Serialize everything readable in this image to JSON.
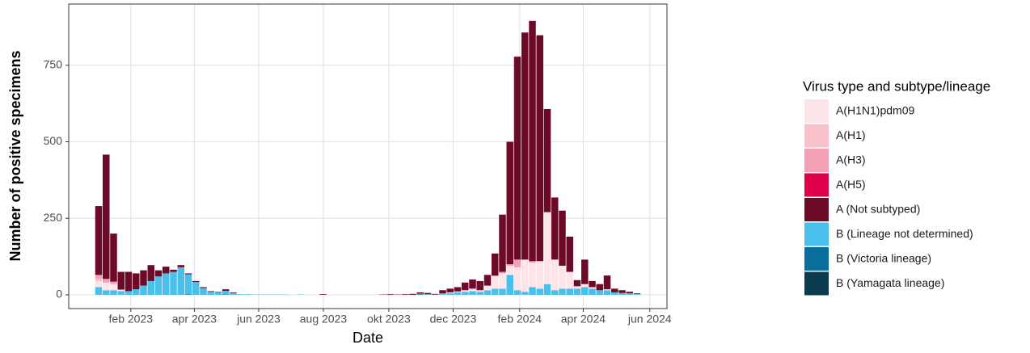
{
  "chart_data": {
    "type": "stacked_bar",
    "x_label": "Date",
    "y_label": "Number of positive specimens",
    "legend_title": "Virus type and subtype/lineage",
    "categories": [
      null,
      null,
      null,
      null,
      null,
      null,
      null,
      null,
      null,
      null,
      null,
      null,
      null,
      null,
      null,
      null,
      null,
      null,
      null,
      null,
      null,
      null,
      null,
      null,
      null,
      null,
      null,
      null,
      null,
      null,
      null,
      null,
      null,
      null,
      null,
      null,
      null,
      null,
      null,
      null,
      null,
      null,
      null,
      null,
      null,
      null,
      null,
      null,
      null,
      null,
      null,
      null,
      null,
      null,
      null,
      null,
      null,
      null,
      null,
      null,
      null,
      null,
      null,
      null,
      null,
      null,
      null,
      null,
      null,
      null,
      null,
      null,
      null
    ],
    "xlim": [
      -4,
      76
    ],
    "xticks": [
      {
        "value": 4.3,
        "label": "feb 2023"
      },
      {
        "value": 12.8,
        "label": "apr 2023"
      },
      {
        "value": 21.4,
        "label": "jun 2023"
      },
      {
        "value": 30.05,
        "label": "aug 2023"
      },
      {
        "value": 38.8,
        "label": "okt 2023"
      },
      {
        "value": 47.4,
        "label": "dec 2023"
      },
      {
        "value": 56.3,
        "label": "feb 2024"
      },
      {
        "value": 64.8,
        "label": "apr 2024"
      },
      {
        "value": 73.7,
        "label": "jun 2024"
      }
    ],
    "ylim": [
      -45,
      950
    ],
    "yticks": [
      0,
      250,
      500,
      750
    ],
    "grid": true,
    "series": [
      {
        "name": "A(H1N1)pdm09",
        "color": "#fce4e8",
        "values": [
          20,
          25,
          20,
          5,
          0,
          0,
          0,
          0,
          0,
          0,
          0,
          0,
          0,
          0,
          0,
          0,
          0,
          0,
          0,
          0,
          0,
          0,
          0,
          0,
          0,
          0,
          0,
          0,
          0,
          0,
          0,
          0,
          0,
          0,
          0,
          0,
          0,
          0,
          0,
          0,
          0,
          0,
          0,
          0,
          0,
          0,
          0,
          3,
          3,
          5,
          8,
          5,
          15,
          40,
          50,
          30,
          75,
          105,
          80,
          90,
          235,
          100,
          75,
          55,
          8,
          10,
          5,
          0,
          3,
          0,
          0,
          0,
          0
        ]
      },
      {
        "name": "A(H1)",
        "color": "#f8c0c8",
        "values": [
          8,
          0,
          0,
          0,
          0,
          0,
          0,
          0,
          0,
          0,
          0,
          0,
          0,
          0,
          0,
          0,
          0,
          0,
          0,
          0,
          0,
          0,
          0,
          0,
          0,
          0,
          0,
          0,
          0,
          0,
          0,
          0,
          0,
          0,
          0,
          0,
          0,
          0,
          0,
          0,
          0,
          0,
          0,
          0,
          0,
          0,
          0,
          0,
          0,
          0,
          0,
          0,
          0,
          0,
          0,
          0,
          0,
          0,
          0,
          0,
          0,
          0,
          0,
          0,
          0,
          0,
          0,
          0,
          0,
          0,
          0,
          0,
          0
        ]
      },
      {
        "name": "A(H3)",
        "color": "#f4a0b4",
        "values": [
          12,
          12,
          8,
          0,
          0,
          0,
          0,
          0,
          0,
          0,
          0,
          0,
          0,
          0,
          0,
          0,
          0,
          0,
          0,
          0,
          0,
          0,
          0,
          0,
          0,
          0,
          0,
          0,
          0,
          0,
          0,
          0,
          0,
          0,
          0,
          0,
          0,
          0,
          0,
          0,
          0,
          0,
          0,
          0,
          0,
          0,
          0,
          0,
          0,
          0,
          0,
          0,
          0,
          3,
          5,
          5,
          25,
          0,
          5,
          0,
          0,
          0,
          0,
          0,
          0,
          0,
          0,
          0,
          0,
          0,
          0,
          0,
          0
        ]
      },
      {
        "name": "A(H5)",
        "color": "#e0004a",
        "values": [
          0,
          0,
          0,
          0,
          0,
          0,
          0,
          0,
          0,
          0,
          0,
          0,
          0,
          0,
          0,
          0,
          0,
          0,
          0,
          0,
          0,
          0,
          0,
          0,
          0,
          0,
          0,
          0,
          0,
          0,
          0,
          0,
          0,
          0,
          0,
          0,
          0,
          0,
          0,
          0,
          0,
          0,
          0,
          0,
          0,
          0,
          0,
          0,
          0,
          0,
          0,
          0,
          0,
          0,
          0,
          0,
          0,
          0,
          0,
          0,
          0,
          0,
          0,
          0,
          0,
          0,
          0,
          0,
          0,
          0,
          0,
          0,
          0
        ]
      },
      {
        "name": "A (Not subtyped)",
        "color": "#6d0a28",
        "values": [
          225,
          406,
          157,
          58,
          63,
          52,
          50,
          52,
          20,
          22,
          7,
          7,
          3,
          3,
          3,
          2,
          1,
          5,
          2,
          0,
          0,
          0,
          0,
          0,
          0,
          0,
          0,
          0,
          0,
          0,
          2,
          0,
          0,
          0,
          0,
          0,
          0,
          0,
          1,
          2,
          1,
          2,
          3,
          4,
          4,
          2,
          10,
          12,
          14,
          25,
          30,
          30,
          35,
          72,
          187,
          400,
          663,
          742,
          785,
          738,
          337,
          203,
          180,
          115,
          20,
          80,
          20,
          20,
          45,
          12,
          9,
          5,
          2
        ]
      },
      {
        "name": "B (Lineage not determined)",
        "color": "#49bfeb",
        "values": [
          25,
          15,
          15,
          12,
          12,
          18,
          30,
          45,
          60,
          70,
          75,
          90,
          65,
          42,
          22,
          10,
          9,
          12,
          6,
          2,
          2,
          1,
          1,
          1,
          1,
          1,
          0,
          1,
          0,
          0,
          0,
          0,
          0,
          0,
          0,
          0,
          0,
          0,
          0,
          0,
          0,
          0,
          0,
          2,
          2,
          1,
          5,
          5,
          8,
          10,
          12,
          10,
          15,
          20,
          20,
          65,
          15,
          10,
          25,
          20,
          35,
          15,
          20,
          20,
          20,
          25,
          20,
          15,
          15,
          8,
          6,
          5,
          3
        ]
      },
      {
        "name": "B (Victoria lineage)",
        "color": "#0a6e9c",
        "values": [
          0,
          0,
          0,
          0,
          0,
          0,
          0,
          0,
          0,
          0,
          0,
          0,
          2,
          0,
          0,
          0,
          0,
          1,
          0,
          0,
          0,
          0,
          0,
          0,
          0,
          0,
          0,
          0,
          0,
          0,
          0,
          0,
          0,
          0,
          0,
          0,
          0,
          0,
          0,
          0,
          0,
          0,
          0,
          2,
          0,
          0,
          0,
          0,
          0,
          0,
          0,
          0,
          0,
          0,
          0,
          0,
          0,
          0,
          0,
          0,
          0,
          0,
          0,
          0,
          0,
          0,
          0,
          0,
          0,
          0,
          0,
          0,
          0
        ]
      },
      {
        "name": "B (Yamagata lineage)",
        "color": "#0a3b4f",
        "values": [
          0,
          0,
          0,
          0,
          0,
          0,
          0,
          0,
          0,
          0,
          0,
          0,
          0,
          0,
          0,
          0,
          0,
          0,
          0,
          0,
          0,
          0,
          0,
          0,
          0,
          0,
          0,
          0,
          0,
          0,
          0,
          0,
          0,
          0,
          0,
          0,
          0,
          0,
          0,
          0,
          0,
          0,
          0,
          0,
          0,
          0,
          0,
          0,
          0,
          0,
          0,
          0,
          0,
          0,
          0,
          0,
          0,
          0,
          0,
          0,
          0,
          0,
          0,
          0,
          0,
          0,
          0,
          0,
          0,
          0,
          0,
          0,
          0
        ]
      }
    ]
  }
}
